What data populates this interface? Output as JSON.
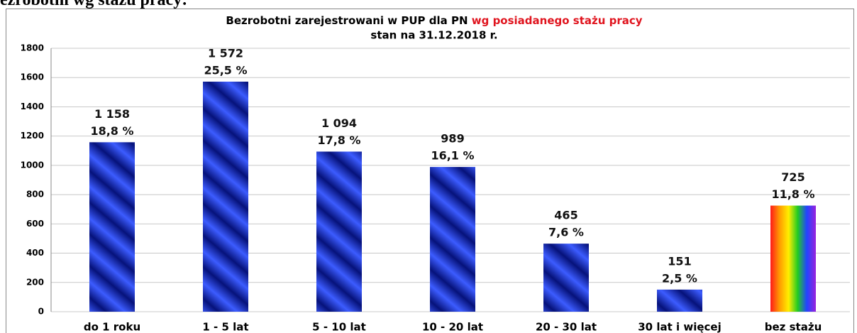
{
  "page_heading": "ezrobotni wg stażu pracy:",
  "chart_data": {
    "type": "bar",
    "title": "Bezrobotni zarejestrowani w PUP dla PN ",
    "title_highlight": "wg posiadanego stażu pracy",
    "subtitle": "stan na 31.12.2018 r.",
    "categories": [
      "do 1 roku",
      "1 - 5 lat",
      "5 - 10 lat",
      "10 - 20 lat",
      "20 - 30 lat",
      "30 lat i więcej",
      "bez stażu"
    ],
    "values": [
      1158,
      1572,
      1094,
      989,
      465,
      151,
      725
    ],
    "value_labels": [
      "1 158",
      "1 572",
      "1 094",
      "989",
      "465",
      "151",
      "725"
    ],
    "shares": [
      18.8,
      25.5,
      17.8,
      16.1,
      7.6,
      2.5,
      11.8
    ],
    "share_labels": [
      "18,8 %",
      "25,5 %",
      "17,8 %",
      "16,1 %",
      "7,6 %",
      "2,5 %",
      "11,8 %"
    ],
    "color": "#1f2fd8",
    "bar_style": [
      "stripes",
      "stripes",
      "stripes",
      "stripes",
      "stripes",
      "stripes",
      "rainbow"
    ],
    "ylim": [
      0,
      1800
    ],
    "yticks": [
      0,
      200,
      400,
      600,
      800,
      1000,
      1200,
      1400,
      1600,
      1800
    ],
    "grid": true
  }
}
